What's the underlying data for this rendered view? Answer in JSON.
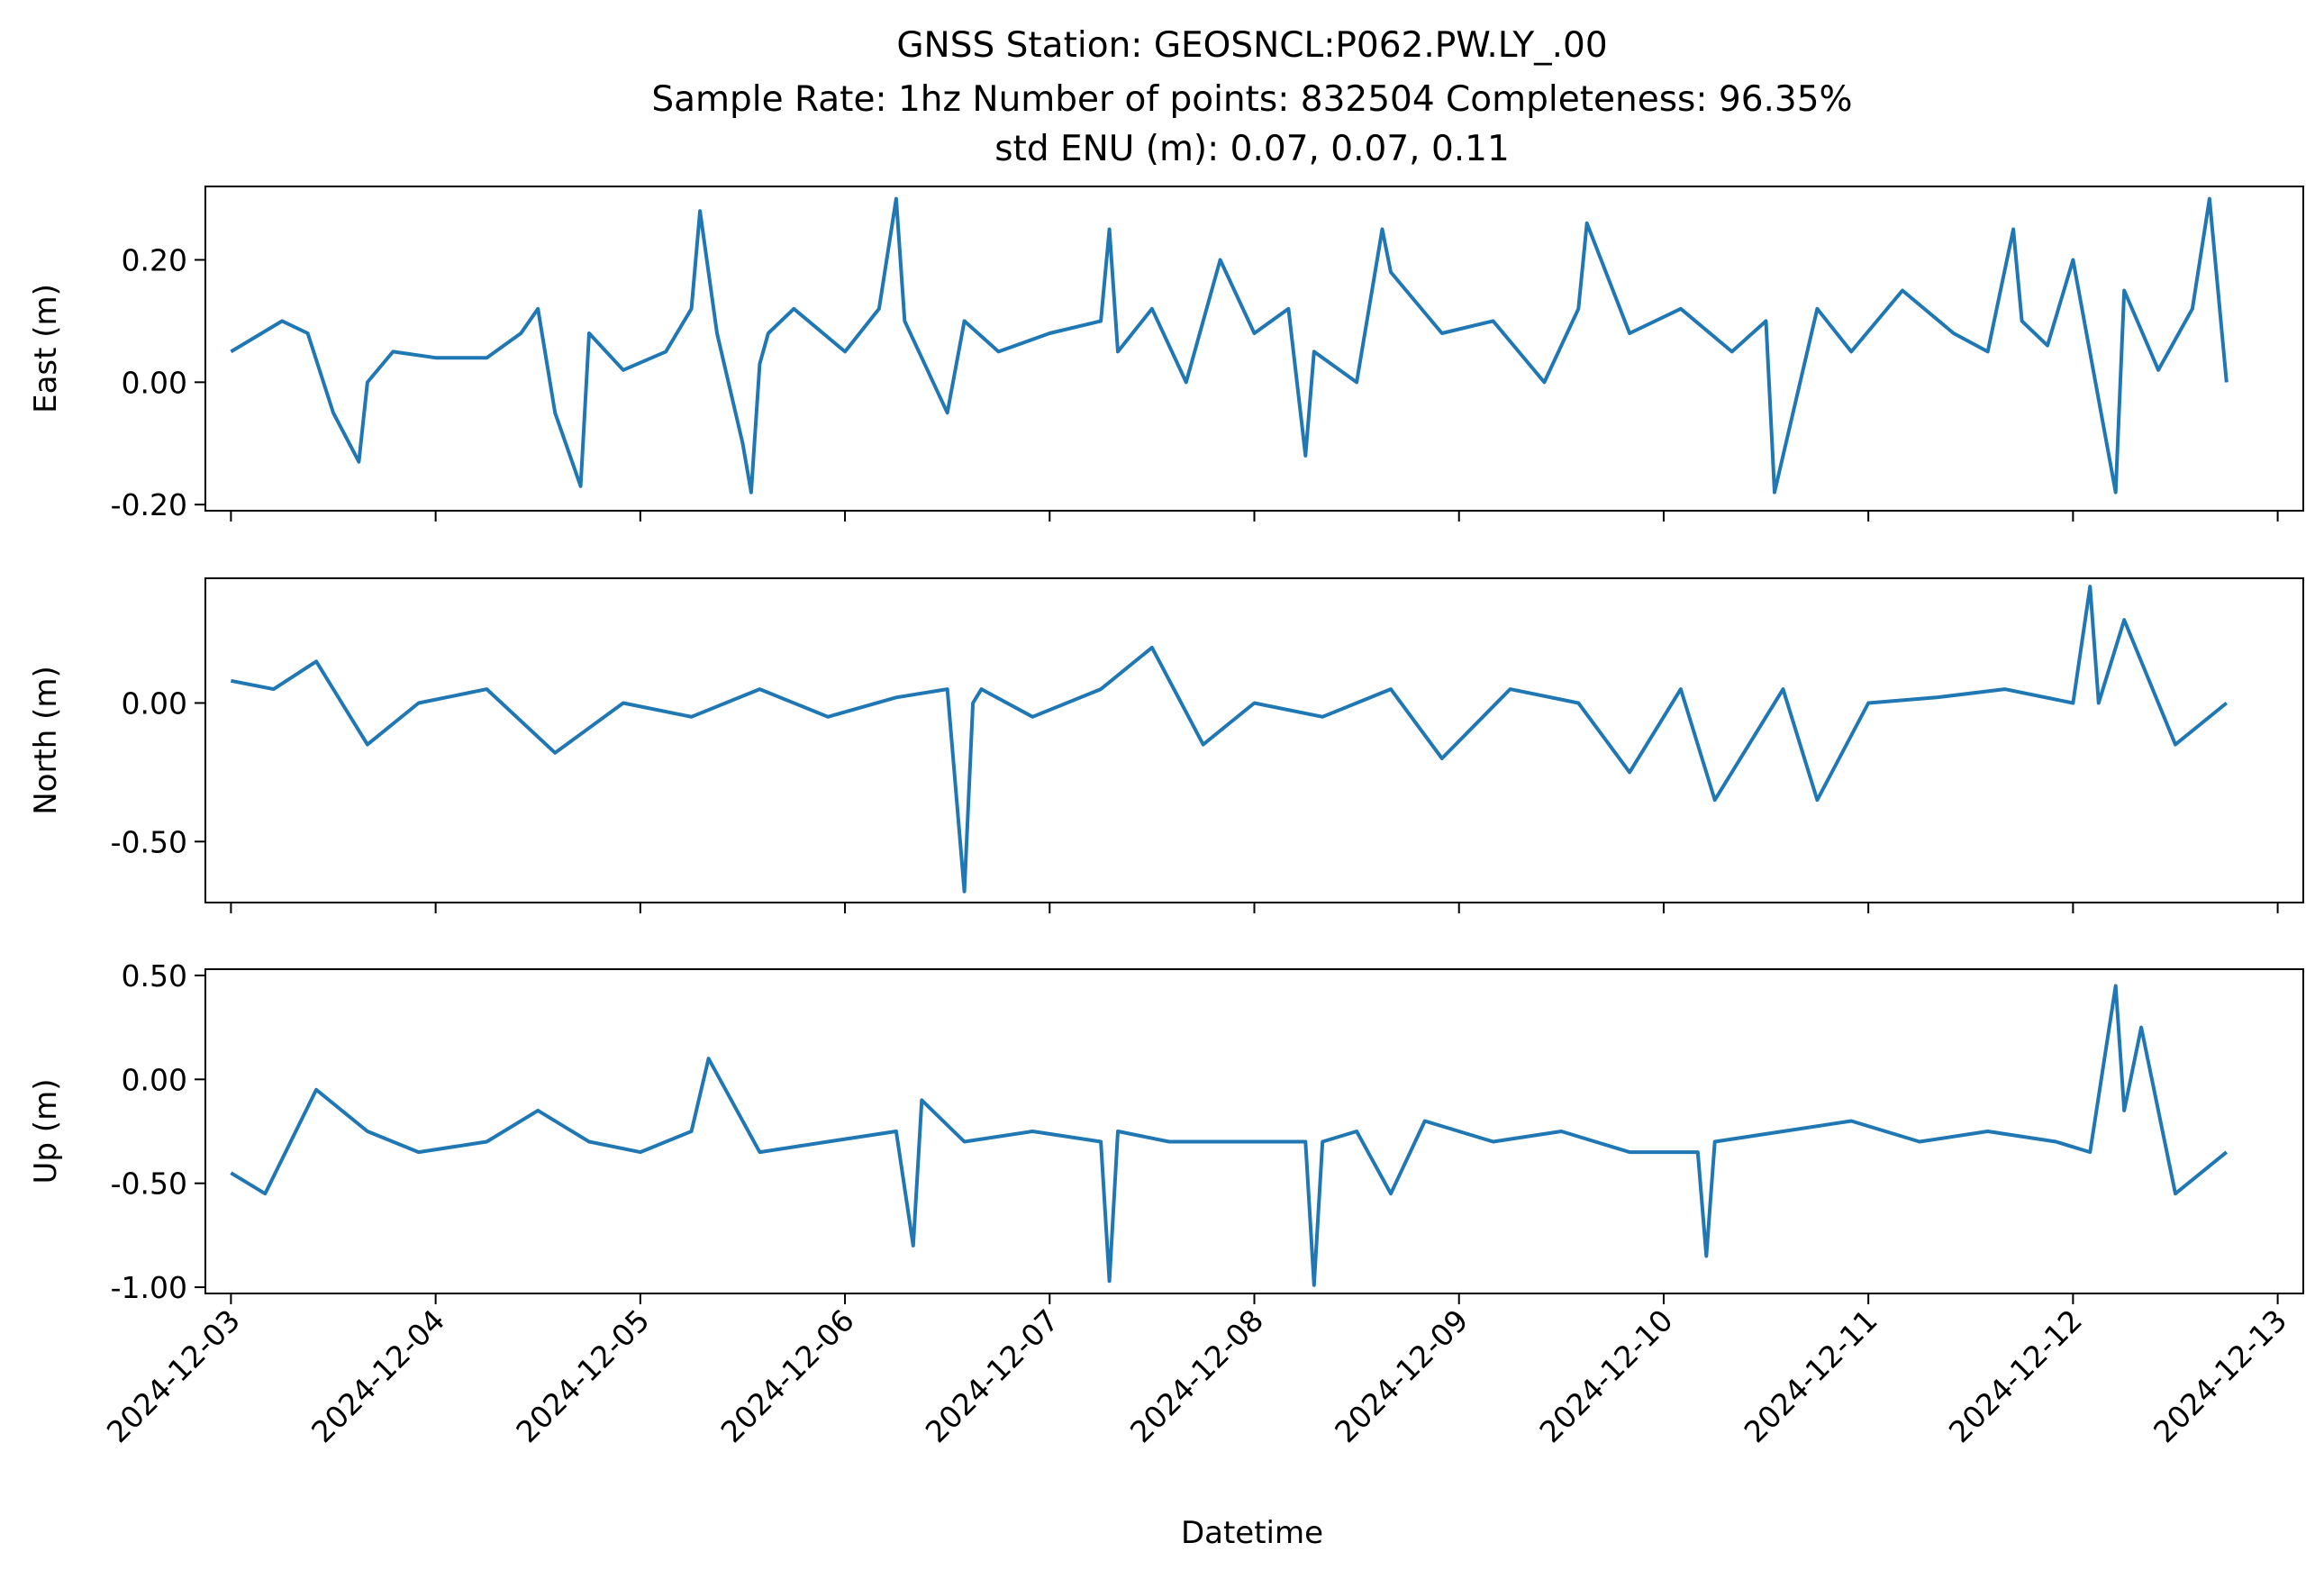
{
  "title_lines": [
    "GNSS Station: GEOSNCL:P062.PW.LY_.00",
    "Sample Rate: 1hz   Number of points: 832504    Completeness:  96.35%",
    "std ENU (m):  0.07, 0.07, 0.11"
  ],
  "xlabel": "Datetime",
  "x_ticks": [
    "2024-12-03",
    "2024-12-04",
    "2024-12-05",
    "2024-12-06",
    "2024-12-07",
    "2024-12-08",
    "2024-12-09",
    "2024-12-10",
    "2024-12-11",
    "2024-12-12",
    "2024-12-13"
  ],
  "line_color": "#1f77b4",
  "chart_data": [
    {
      "type": "line",
      "ylabel": "East (m)",
      "xlim": [
        "2024-12-02T21:00",
        "2024-12-13T03:00"
      ],
      "ylim": [
        -0.21,
        0.32
      ],
      "yticks": [
        0.2,
        0.0,
        -0.2
      ],
      "ytick_labels": [
        "0.20",
        "0.00",
        "-0.20"
      ],
      "show_x_labels": false,
      "series": [
        {
          "x": [
            "2024-12-03T00:00",
            "2024-12-03T06:00",
            "2024-12-03T09:00",
            "2024-12-03T12:00",
            "2024-12-03T15:00",
            "2024-12-03T16:00",
            "2024-12-03T19:00",
            "2024-12-04T00:00",
            "2024-12-04T06:00",
            "2024-12-04T10:00",
            "2024-12-04T12:00",
            "2024-12-04T14:00",
            "2024-12-04T17:00",
            "2024-12-04T18:00",
            "2024-12-04T22:00",
            "2024-12-05T03:00",
            "2024-12-05T06:00",
            "2024-12-05T07:00",
            "2024-12-05T09:00",
            "2024-12-05T12:00",
            "2024-12-05T13:00",
            "2024-12-05T14:00",
            "2024-12-05T15:00",
            "2024-12-05T18:00",
            "2024-12-06T00:00",
            "2024-12-06T04:00",
            "2024-12-06T06:00",
            "2024-12-06T07:00",
            "2024-12-06T12:00",
            "2024-12-06T14:00",
            "2024-12-06T18:00",
            "2024-12-07T00:00",
            "2024-12-07T06:00",
            "2024-12-07T07:00",
            "2024-12-07T08:00",
            "2024-12-07T12:00",
            "2024-12-07T16:00",
            "2024-12-07T20:00",
            "2024-12-08T00:00",
            "2024-12-08T04:00",
            "2024-12-08T06:00",
            "2024-12-08T07:00",
            "2024-12-08T12:00",
            "2024-12-08T15:00",
            "2024-12-08T16:00",
            "2024-12-08T22:00",
            "2024-12-09T04:00",
            "2024-12-09T10:00",
            "2024-12-09T14:00",
            "2024-12-09T15:00",
            "2024-12-09T20:00",
            "2024-12-10T02:00",
            "2024-12-10T08:00",
            "2024-12-10T12:00",
            "2024-12-10T13:00",
            "2024-12-10T18:00",
            "2024-12-10T22:00",
            "2024-12-11T04:00",
            "2024-12-11T10:00",
            "2024-12-11T14:00",
            "2024-12-11T17:00",
            "2024-12-11T18:00",
            "2024-12-11T21:00",
            "2024-12-12T00:00",
            "2024-12-12T05:00",
            "2024-12-12T06:00",
            "2024-12-12T10:00",
            "2024-12-12T14:00",
            "2024-12-12T16:00",
            "2024-12-12T18:00"
          ],
          "y": [
            0.05,
            0.1,
            0.08,
            -0.05,
            -0.13,
            0.0,
            0.05,
            0.04,
            0.04,
            0.08,
            0.12,
            -0.05,
            -0.17,
            0.08,
            0.02,
            0.05,
            0.12,
            0.28,
            0.08,
            -0.1,
            -0.18,
            0.03,
            0.08,
            0.12,
            0.05,
            0.12,
            0.3,
            0.1,
            -0.05,
            0.1,
            0.05,
            0.08,
            0.1,
            0.25,
            0.05,
            0.12,
            0.0,
            0.2,
            0.08,
            0.12,
            -0.12,
            0.05,
            0.0,
            0.25,
            0.18,
            0.08,
            0.1,
            0.0,
            0.12,
            0.26,
            0.08,
            0.12,
            0.05,
            0.1,
            -0.18,
            0.12,
            0.05,
            0.15,
            0.08,
            0.05,
            0.25,
            0.1,
            0.06,
            0.2,
            -0.18,
            0.15,
            0.02,
            0.12,
            0.3,
            0.0
          ]
        }
      ]
    },
    {
      "type": "line",
      "ylabel": "North (m)",
      "xlim": [
        "2024-12-02T21:00",
        "2024-12-13T03:00"
      ],
      "ylim": [
        -0.72,
        0.45
      ],
      "yticks": [
        0.0,
        -0.5
      ],
      "ytick_labels": [
        "0.00",
        "-0.50"
      ],
      "show_x_labels": false,
      "series": [
        {
          "x": [
            "2024-12-03T00:00",
            "2024-12-03T05:00",
            "2024-12-03T10:00",
            "2024-12-03T16:00",
            "2024-12-03T22:00",
            "2024-12-04T06:00",
            "2024-12-04T14:00",
            "2024-12-04T22:00",
            "2024-12-05T06:00",
            "2024-12-05T14:00",
            "2024-12-05T22:00",
            "2024-12-06T06:00",
            "2024-12-06T12:00",
            "2024-12-06T14:00",
            "2024-12-06T15:00",
            "2024-12-06T16:00",
            "2024-12-06T22:00",
            "2024-12-07T06:00",
            "2024-12-07T12:00",
            "2024-12-07T18:00",
            "2024-12-08T00:00",
            "2024-12-08T08:00",
            "2024-12-08T16:00",
            "2024-12-08T22:00",
            "2024-12-09T06:00",
            "2024-12-09T14:00",
            "2024-12-09T20:00",
            "2024-12-10T02:00",
            "2024-12-10T06:00",
            "2024-12-10T14:00",
            "2024-12-10T18:00",
            "2024-12-11T00:00",
            "2024-12-11T08:00",
            "2024-12-11T16:00",
            "2024-12-12T00:00",
            "2024-12-12T02:00",
            "2024-12-12T03:00",
            "2024-12-12T06:00",
            "2024-12-12T12:00",
            "2024-12-12T18:00"
          ],
          "y": [
            0.08,
            0.05,
            0.15,
            -0.15,
            0.0,
            0.05,
            -0.18,
            0.0,
            -0.05,
            0.05,
            -0.05,
            0.02,
            0.05,
            -0.68,
            0.0,
            0.05,
            -0.05,
            0.05,
            0.2,
            -0.15,
            0.0,
            -0.05,
            0.05,
            -0.2,
            0.05,
            0.0,
            -0.25,
            0.05,
            -0.35,
            0.05,
            -0.35,
            0.0,
            0.02,
            0.05,
            0.0,
            0.42,
            0.0,
            0.3,
            -0.15,
            0.0
          ]
        }
      ]
    },
    {
      "type": "line",
      "ylabel": "Up (m)",
      "xlim": [
        "2024-12-02T21:00",
        "2024-12-13T03:00"
      ],
      "ylim": [
        -1.03,
        0.53
      ],
      "yticks": [
        0.5,
        0.0,
        -0.5,
        -1.0
      ],
      "ytick_labels": [
        "0.50",
        "0.00",
        "-0.50",
        "-1.00"
      ],
      "show_x_labels": true,
      "series": [
        {
          "x": [
            "2024-12-03T00:00",
            "2024-12-03T04:00",
            "2024-12-03T10:00",
            "2024-12-03T16:00",
            "2024-12-03T22:00",
            "2024-12-04T06:00",
            "2024-12-04T12:00",
            "2024-12-04T18:00",
            "2024-12-05T00:00",
            "2024-12-05T06:00",
            "2024-12-05T08:00",
            "2024-12-05T14:00",
            "2024-12-05T22:00",
            "2024-12-06T06:00",
            "2024-12-06T08:00",
            "2024-12-06T09:00",
            "2024-12-06T14:00",
            "2024-12-06T22:00",
            "2024-12-07T06:00",
            "2024-12-07T07:00",
            "2024-12-07T08:00",
            "2024-12-07T14:00",
            "2024-12-07T22:00",
            "2024-12-08T06:00",
            "2024-12-08T07:00",
            "2024-12-08T08:00",
            "2024-12-08T12:00",
            "2024-12-08T16:00",
            "2024-12-08T20:00",
            "2024-12-09T04:00",
            "2024-12-09T12:00",
            "2024-12-09T20:00",
            "2024-12-10T04:00",
            "2024-12-10T05:00",
            "2024-12-10T06:00",
            "2024-12-10T14:00",
            "2024-12-10T22:00",
            "2024-12-11T06:00",
            "2024-12-11T14:00",
            "2024-12-11T22:00",
            "2024-12-12T02:00",
            "2024-12-12T05:00",
            "2024-12-12T06:00",
            "2024-12-12T08:00",
            "2024-12-12T12:00",
            "2024-12-12T18:00"
          ],
          "y": [
            -0.45,
            -0.55,
            -0.05,
            -0.25,
            -0.35,
            -0.3,
            -0.15,
            -0.3,
            -0.35,
            -0.25,
            0.1,
            -0.35,
            -0.3,
            -0.25,
            -0.8,
            -0.1,
            -0.3,
            -0.25,
            -0.3,
            -0.97,
            -0.25,
            -0.3,
            -0.3,
            -0.3,
            -0.99,
            -0.3,
            -0.25,
            -0.55,
            -0.2,
            -0.3,
            -0.25,
            -0.35,
            -0.35,
            -0.85,
            -0.3,
            -0.25,
            -0.2,
            -0.3,
            -0.25,
            -0.3,
            -0.35,
            0.45,
            -0.15,
            0.25,
            -0.55,
            -0.35
          ]
        }
      ]
    }
  ]
}
